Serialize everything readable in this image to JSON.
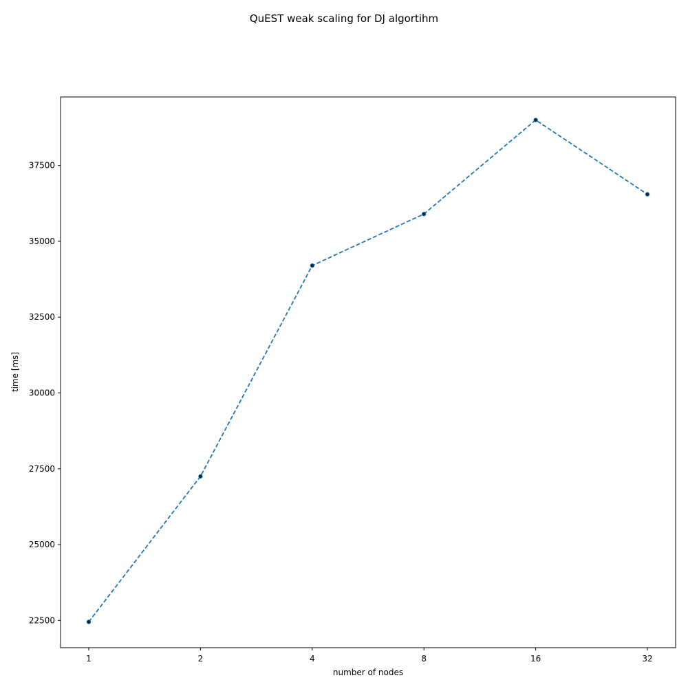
{
  "chart_data": {
    "type": "line",
    "title": "QuEST weak scaling for DJ algortihm",
    "xlabel": "number of nodes",
    "ylabel": "time [ms]",
    "categories": [
      "1",
      "2",
      "4",
      "8",
      "16",
      "32"
    ],
    "series": [
      {
        "values": [
          22450,
          27250,
          34200,
          35900,
          39000,
          36550
        ],
        "line_style": "dashed",
        "line_color": "#1f77b4",
        "marker_color": "#0b2a45"
      }
    ],
    "ylim": [
      21600,
      39760
    ],
    "yticks": [
      22500,
      25000,
      27500,
      30000,
      32500,
      35000,
      37500
    ],
    "grid": false,
    "legend": "none"
  }
}
